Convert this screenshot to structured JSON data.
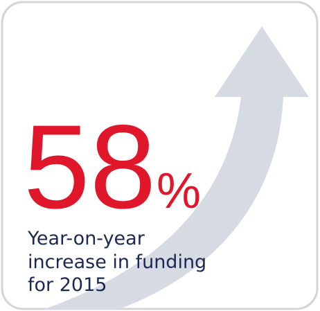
{
  "stat": {
    "value": "58",
    "unit": "%",
    "caption": [
      "Year-on-year",
      "increase in funding",
      "for 2015"
    ]
  }
}
